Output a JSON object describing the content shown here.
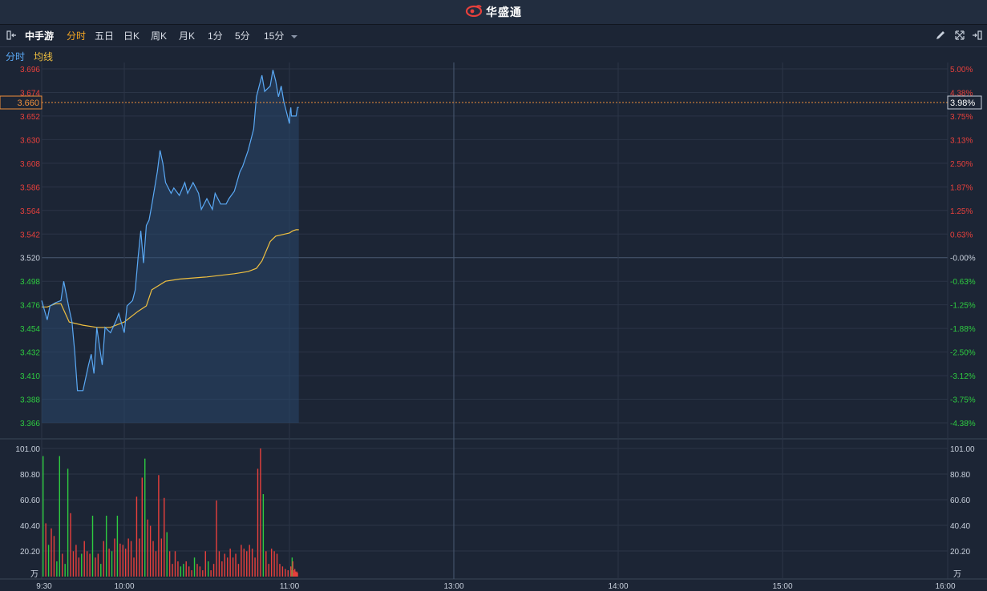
{
  "app": {
    "brand": "华盛通"
  },
  "toolbar": {
    "stock_name": "中手游",
    "tabs": [
      "分时",
      "五日",
      "日K",
      "周K",
      "月K",
      "1分",
      "5分",
      "15分"
    ],
    "active_tab": "分时"
  },
  "legend": {
    "price_label": "分时",
    "avg_label": "均线"
  },
  "colors": {
    "up": "#e8403c",
    "down": "#2ecc40",
    "price_line": "#5aa9f5",
    "avg_line": "#f0c040",
    "background": "#1c2535",
    "grid": "#2b3547"
  },
  "price_axis": {
    "left_ticks": [
      "3.696",
      "3.674",
      "3.652",
      "3.630",
      "3.608",
      "3.586",
      "3.564",
      "3.542",
      "3.520",
      "3.498",
      "3.476",
      "3.454",
      "3.432",
      "3.410",
      "3.388",
      "3.366"
    ],
    "right_ticks": [
      "5.00%",
      "4.38%",
      "3.75%",
      "3.13%",
      "2.50%",
      "1.87%",
      "1.25%",
      "0.63%",
      "-0.00%",
      "-0.63%",
      "-1.25%",
      "-1.88%",
      "-2.50%",
      "-3.12%",
      "-3.75%",
      "-4.38%"
    ],
    "current_price": "3.660",
    "current_change": "3.98%"
  },
  "volume_axis": {
    "ticks": [
      "101.00",
      "80.80",
      "60.60",
      "40.40",
      "20.20"
    ],
    "unit": "万"
  },
  "time_axis": [
    "9:30",
    "10:00",
    "11:00",
    "13:00",
    "14:00",
    "15:00",
    "16:00"
  ],
  "chart_data": {
    "type": "line",
    "title": "",
    "xlabel": "",
    "ylabel": "",
    "ylim": [
      3.366,
      3.696
    ],
    "volume_ylim": [
      0,
      101.0
    ],
    "series": [
      {
        "name": "分时",
        "x": [
          "9:30",
          "9:32",
          "9:33",
          "9:35",
          "9:37",
          "9:38",
          "9:40",
          "9:41",
          "9:42",
          "9:43",
          "9:45",
          "9:47",
          "9:48",
          "9:49",
          "9:50",
          "9:52",
          "9:53",
          "9:55",
          "9:57",
          "9:58",
          "10:00",
          "10:01",
          "10:03",
          "10:04",
          "10:05",
          "10:06",
          "10:07",
          "10:08",
          "10:09",
          "10:10",
          "10:12",
          "10:13",
          "10:14",
          "10:15",
          "10:17",
          "10:18",
          "10:20",
          "10:22",
          "10:23",
          "10:25",
          "10:27",
          "10:28",
          "10:30",
          "10:32",
          "10:33",
          "10:35",
          "10:37",
          "10:38",
          "10:40",
          "10:42",
          "10:43",
          "10:45",
          "10:47",
          "10:48",
          "10:50",
          "10:51",
          "10:53",
          "10:54",
          "10:55",
          "10:56",
          "10:57",
          "10:58",
          "11:00",
          "11:01",
          "11:02",
          "11:03",
          "11:05",
          "11:07",
          "11:10",
          "11:12",
          "11:14"
        ],
        "values": [
          3.48,
          3.462,
          3.475,
          3.478,
          3.48,
          3.498,
          3.472,
          3.46,
          3.432,
          3.396,
          3.396,
          3.42,
          3.43,
          3.412,
          3.455,
          3.42,
          3.455,
          3.45,
          3.461,
          3.468,
          3.45,
          3.475,
          3.48,
          3.49,
          3.52,
          3.545,
          3.515,
          3.55,
          3.555,
          3.569,
          3.6,
          3.62,
          3.608,
          3.59,
          3.58,
          3.585,
          3.578,
          3.59,
          3.58,
          3.59,
          3.58,
          3.565,
          3.575,
          3.565,
          3.58,
          3.57,
          3.57,
          3.575,
          3.582,
          3.6,
          3.605,
          3.62,
          3.64,
          3.67,
          3.69,
          3.675,
          3.68,
          3.695,
          3.685,
          3.67,
          3.68,
          3.665,
          3.645,
          3.655,
          3.66,
          3.652,
          3.652,
          3.652,
          3.652,
          3.66,
          3.66
        ]
      },
      {
        "name": "均线",
        "x": [
          "9:30",
          "9:32",
          "9:35",
          "9:37",
          "9:40",
          "9:45",
          "9:50",
          "9:55",
          "10:00",
          "10:05",
          "10:08",
          "10:10",
          "10:15",
          "10:20",
          "10:30",
          "10:40",
          "10:45",
          "10:48",
          "10:50",
          "10:53",
          "10:55",
          "11:00",
          "11:05",
          "11:10",
          "11:14"
        ],
        "values": [
          3.474,
          3.474,
          3.477,
          3.477,
          3.46,
          3.457,
          3.455,
          3.455,
          3.46,
          3.47,
          3.475,
          3.49,
          3.498,
          3.5,
          3.502,
          3.505,
          3.507,
          3.51,
          3.517,
          3.535,
          3.54,
          3.543,
          3.545,
          3.546,
          3.546
        ]
      }
    ],
    "volume": [
      {
        "x": "9:30",
        "v": 95,
        "dir": "down"
      },
      {
        "x": "9:31",
        "v": 42,
        "dir": "up"
      },
      {
        "x": "9:32",
        "v": 25,
        "dir": "down"
      },
      {
        "x": "9:33",
        "v": 38,
        "dir": "up"
      },
      {
        "x": "9:34",
        "v": 32,
        "dir": "up"
      },
      {
        "x": "9:35",
        "v": 12,
        "dir": "down"
      },
      {
        "x": "9:36",
        "v": 95,
        "dir": "down"
      },
      {
        "x": "9:37",
        "v": 18,
        "dir": "up"
      },
      {
        "x": "9:38",
        "v": 10,
        "dir": "down"
      },
      {
        "x": "9:39",
        "v": 85,
        "dir": "down"
      },
      {
        "x": "9:40",
        "v": 50,
        "dir": "up"
      },
      {
        "x": "9:41",
        "v": 20,
        "dir": "up"
      },
      {
        "x": "9:42",
        "v": 25,
        "dir": "up"
      },
      {
        "x": "9:43",
        "v": 15,
        "dir": "up"
      },
      {
        "x": "9:44",
        "v": 18,
        "dir": "down"
      },
      {
        "x": "9:45",
        "v": 28,
        "dir": "up"
      },
      {
        "x": "9:46",
        "v": 20,
        "dir": "up"
      },
      {
        "x": "9:47",
        "v": 18,
        "dir": "up"
      },
      {
        "x": "9:48",
        "v": 48,
        "dir": "down"
      },
      {
        "x": "9:49",
        "v": 15,
        "dir": "up"
      },
      {
        "x": "9:50",
        "v": 18,
        "dir": "up"
      },
      {
        "x": "9:51",
        "v": 10,
        "dir": "down"
      },
      {
        "x": "9:52",
        "v": 28,
        "dir": "up"
      },
      {
        "x": "9:53",
        "v": 48,
        "dir": "down"
      },
      {
        "x": "9:54",
        "v": 22,
        "dir": "up"
      },
      {
        "x": "9:55",
        "v": 20,
        "dir": "down"
      },
      {
        "x": "9:56",
        "v": 30,
        "dir": "up"
      },
      {
        "x": "9:57",
        "v": 48,
        "dir": "down"
      },
      {
        "x": "9:58",
        "v": 26,
        "dir": "up"
      },
      {
        "x": "9:59",
        "v": 25,
        "dir": "up"
      },
      {
        "x": "10:00",
        "v": 22,
        "dir": "up"
      },
      {
        "x": "10:01",
        "v": 30,
        "dir": "up"
      },
      {
        "x": "10:02",
        "v": 28,
        "dir": "up"
      },
      {
        "x": "10:03",
        "v": 15,
        "dir": "up"
      },
      {
        "x": "10:04",
        "v": 63,
        "dir": "up"
      },
      {
        "x": "10:05",
        "v": 30,
        "dir": "up"
      },
      {
        "x": "10:06",
        "v": 78,
        "dir": "up"
      },
      {
        "x": "10:07",
        "v": 93,
        "dir": "down"
      },
      {
        "x": "10:08",
        "v": 45,
        "dir": "up"
      },
      {
        "x": "10:09",
        "v": 40,
        "dir": "up"
      },
      {
        "x": "10:10",
        "v": 28,
        "dir": "up"
      },
      {
        "x": "10:11",
        "v": 20,
        "dir": "up"
      },
      {
        "x": "10:12",
        "v": 80,
        "dir": "up"
      },
      {
        "x": "10:13",
        "v": 30,
        "dir": "up"
      },
      {
        "x": "10:14",
        "v": 62,
        "dir": "up"
      },
      {
        "x": "10:15",
        "v": 35,
        "dir": "down"
      },
      {
        "x": "10:16",
        "v": 20,
        "dir": "up"
      },
      {
        "x": "10:17",
        "v": 10,
        "dir": "up"
      },
      {
        "x": "10:18",
        "v": 20,
        "dir": "up"
      },
      {
        "x": "10:19",
        "v": 12,
        "dir": "up"
      },
      {
        "x": "10:20",
        "v": 8,
        "dir": "down"
      },
      {
        "x": "10:21",
        "v": 10,
        "dir": "down"
      },
      {
        "x": "10:22",
        "v": 12,
        "dir": "up"
      },
      {
        "x": "10:23",
        "v": 8,
        "dir": "up"
      },
      {
        "x": "10:24",
        "v": 5,
        "dir": "up"
      },
      {
        "x": "10:25",
        "v": 15,
        "dir": "down"
      },
      {
        "x": "10:26",
        "v": 10,
        "dir": "up"
      },
      {
        "x": "10:27",
        "v": 8,
        "dir": "up"
      },
      {
        "x": "10:28",
        "v": 5,
        "dir": "up"
      },
      {
        "x": "10:29",
        "v": 20,
        "dir": "up"
      },
      {
        "x": "10:30",
        "v": 12,
        "dir": "down"
      },
      {
        "x": "10:31",
        "v": 5,
        "dir": "up"
      },
      {
        "x": "10:32",
        "v": 10,
        "dir": "up"
      },
      {
        "x": "10:33",
        "v": 60,
        "dir": "up"
      },
      {
        "x": "10:34",
        "v": 20,
        "dir": "up"
      },
      {
        "x": "10:35",
        "v": 12,
        "dir": "up"
      },
      {
        "x": "10:36",
        "v": 18,
        "dir": "up"
      },
      {
        "x": "10:37",
        "v": 15,
        "dir": "up"
      },
      {
        "x": "10:38",
        "v": 22,
        "dir": "up"
      },
      {
        "x": "10:39",
        "v": 15,
        "dir": "up"
      },
      {
        "x": "10:40",
        "v": 18,
        "dir": "up"
      },
      {
        "x": "10:41",
        "v": 10,
        "dir": "up"
      },
      {
        "x": "10:42",
        "v": 25,
        "dir": "up"
      },
      {
        "x": "10:43",
        "v": 22,
        "dir": "up"
      },
      {
        "x": "10:44",
        "v": 20,
        "dir": "up"
      },
      {
        "x": "10:45",
        "v": 25,
        "dir": "up"
      },
      {
        "x": "10:46",
        "v": 22,
        "dir": "up"
      },
      {
        "x": "10:47",
        "v": 15,
        "dir": "up"
      },
      {
        "x": "10:48",
        "v": 85,
        "dir": "up"
      },
      {
        "x": "10:49",
        "v": 101,
        "dir": "up"
      },
      {
        "x": "10:50",
        "v": 65,
        "dir": "down"
      },
      {
        "x": "10:51",
        "v": 20,
        "dir": "up"
      },
      {
        "x": "10:52",
        "v": 10,
        "dir": "up"
      },
      {
        "x": "10:53",
        "v": 22,
        "dir": "up"
      },
      {
        "x": "10:54",
        "v": 20,
        "dir": "up"
      },
      {
        "x": "10:55",
        "v": 18,
        "dir": "up"
      },
      {
        "x": "10:56",
        "v": 10,
        "dir": "up"
      },
      {
        "x": "10:57",
        "v": 8,
        "dir": "up"
      },
      {
        "x": "10:58",
        "v": 6,
        "dir": "up"
      },
      {
        "x": "10:59",
        "v": 5,
        "dir": "up"
      },
      {
        "x": "11:00",
        "v": 8,
        "dir": "up"
      },
      {
        "x": "11:01",
        "v": 5,
        "dir": "up"
      },
      {
        "x": "11:02",
        "v": 15,
        "dir": "down"
      },
      {
        "x": "11:03",
        "v": 12,
        "dir": "up"
      },
      {
        "x": "11:04",
        "v": 5,
        "dir": "up"
      },
      {
        "x": "11:05",
        "v": 3,
        "dir": "up"
      },
      {
        "x": "11:06",
        "v": 6,
        "dir": "up"
      },
      {
        "x": "11:07",
        "v": 4,
        "dir": "up"
      },
      {
        "x": "11:08",
        "v": 3,
        "dir": "up"
      },
      {
        "x": "11:09",
        "v": 4,
        "dir": "up"
      },
      {
        "x": "11:10",
        "v": 3,
        "dir": "up"
      }
    ]
  }
}
